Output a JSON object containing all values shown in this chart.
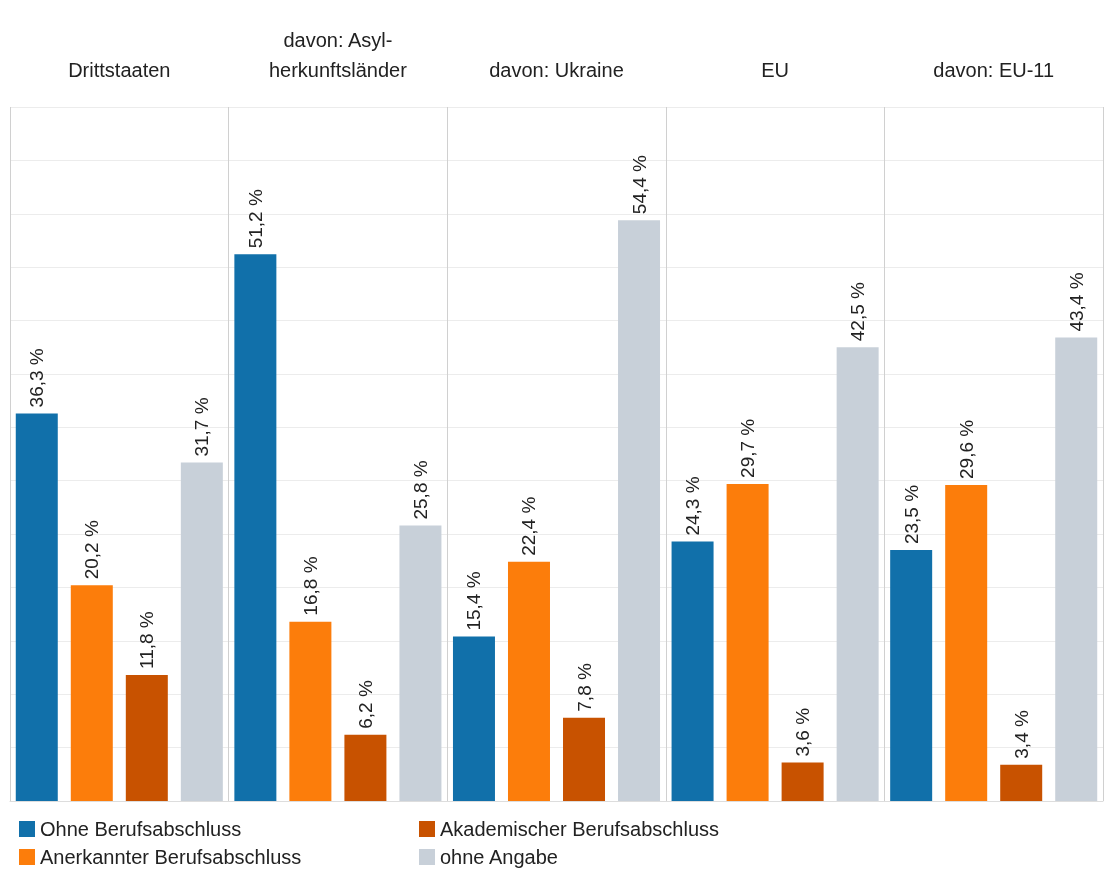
{
  "chart_data": {
    "type": "bar",
    "categories": [
      "Drittstaaten",
      "davon: Asyl-\nherkunftsländer",
      "davon: Ukraine",
      "EU",
      "davon: EU-11"
    ],
    "series": [
      {
        "name": "Ohne Berufsabschluss",
        "color": "#1170aa",
        "values": [
          36.3,
          51.2,
          15.4,
          24.3,
          23.5
        ],
        "value_labels": [
          "36,3 %",
          "51,2 %",
          "15,4 %",
          "24,3 %",
          "23,5 %"
        ]
      },
      {
        "name": "Anerkannter Berufsabschluss",
        "color": "#fc7d0b",
        "values": [
          20.2,
          16.8,
          22.4,
          29.7,
          29.6
        ],
        "value_labels": [
          "20,2 %",
          "16,8 %",
          "22,4 %",
          "29,7 %",
          "29,6 %"
        ]
      },
      {
        "name": "Akademischer Berufsabschluss",
        "color": "#c85200",
        "values": [
          11.8,
          6.2,
          7.8,
          3.6,
          3.4
        ],
        "value_labels": [
          "11,8 %",
          "6,2 %",
          "7,8 %",
          "3,6 %",
          "3,4 %"
        ]
      },
      {
        "name": "ohne Angabe",
        "color": "#c8d0d9",
        "values": [
          31.7,
          25.8,
          54.4,
          42.5,
          43.4
        ],
        "value_labels": [
          "31,7 %",
          "25,8 %",
          "54,4 %",
          "42,5 %",
          "43,4 %"
        ]
      }
    ],
    "ylim": [
      0,
      65
    ],
    "yticks": [
      0,
      5,
      10,
      15,
      20,
      25,
      30,
      35,
      40,
      45,
      50,
      55,
      60,
      65
    ],
    "tick_labels": "x",
    "grid": true,
    "legend": "bottom"
  }
}
